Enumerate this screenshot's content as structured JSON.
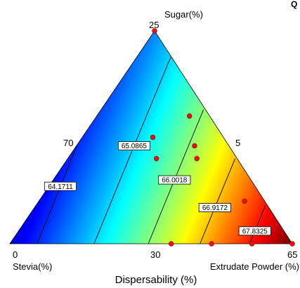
{
  "chart_data": {
    "type": "ternary_contour",
    "title": "",
    "response_label": "Dispersability (%)",
    "corner_mark": "Q",
    "components": [
      {
        "name": "Sugar(%)",
        "short": "Sugar",
        "min": 0,
        "max": 25
      },
      {
        "name": "Stevia(%)",
        "short": "Stevia",
        "min": 0,
        "max": 70
      },
      {
        "name": "Extrudate Powder (%)",
        "short": "Extrudate",
        "min": 30,
        "max": 65
      }
    ],
    "edge_tick_labels": {
      "sugar_top": "25",
      "left_side": "70",
      "right_side": "5",
      "bottom_left": "0",
      "bottom_mid": "30",
      "bottom_right": "65"
    },
    "contour_levels": [
      64.1711,
      65.0865,
      66.0018,
      66.9172,
      67.8325
    ],
    "contour_labels": [
      "64.1711",
      "65.0865",
      "66.0018",
      "66.9172",
      "67.8325"
    ],
    "response_range": [
      63.3,
      68.6
    ],
    "colormap": "jet (blue = low, red = high)",
    "design_points": [
      {
        "sugar": 25,
        "stevia": 5,
        "extrudate": 70
      },
      {
        "sugar": 15,
        "stevia": 5,
        "extrudate": 80
      },
      {
        "sugar": 12.5,
        "stevia": 17.5,
        "extrudate": 70
      },
      {
        "sugar": 10,
        "stevia": 20,
        "extrudate": 70
      },
      {
        "sugar": 10,
        "stevia": 10,
        "extrudate": 80
      },
      {
        "sugar": 5,
        "stevia": 5,
        "extrudate": 90
      },
      {
        "sugar": 0,
        "stevia": 20,
        "extrudate": 80
      },
      {
        "sugar": 0,
        "stevia": 10,
        "extrudate": 90
      },
      {
        "sugar": 0,
        "stevia": 30,
        "extrudate": 70
      },
      {
        "sugar": 0,
        "stevia": 0,
        "extrudate": 100
      },
      {
        "sugar": 11.5,
        "stevia": 8.5,
        "extrudate": 80
      }
    ],
    "grid": false,
    "legend": "none"
  },
  "colors": {
    "design_point": "#e8110c",
    "contour_line": "#000000",
    "triangle_edge": "#000000"
  }
}
